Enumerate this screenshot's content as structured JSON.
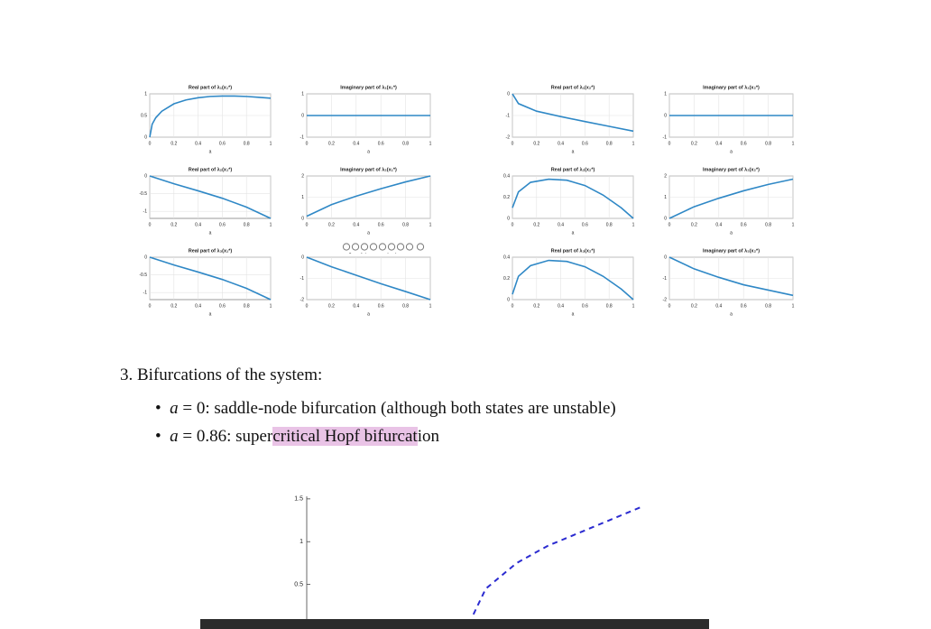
{
  "small_axes": {
    "xlabel": "a",
    "xlim": [
      0,
      1
    ],
    "xticks": [
      0,
      0.2,
      0.4,
      0.6,
      0.8,
      1
    ]
  },
  "plots": [
    {
      "type": "line",
      "title": "Real part of λ₁(x₁*)",
      "ylim": [
        0,
        1
      ],
      "yticks": [
        0,
        0.5,
        1
      ],
      "x": [
        0,
        0.02,
        0.05,
        0.1,
        0.2,
        0.3,
        0.4,
        0.5,
        0.6,
        0.7,
        0.8,
        0.9,
        1
      ],
      "values": [
        0,
        0.3,
        0.45,
        0.6,
        0.77,
        0.86,
        0.91,
        0.94,
        0.95,
        0.95,
        0.94,
        0.92,
        0.9
      ]
    },
    {
      "type": "line",
      "title": "Imaginary part of λ₁(x₁*)",
      "ylim": [
        -1,
        1
      ],
      "yticks": [
        -1,
        0,
        1
      ],
      "x": [
        0,
        1
      ],
      "values": [
        0,
        0
      ]
    },
    {
      "type": "line",
      "title": "Real part of λ₁(x₂*)",
      "ylim": [
        -2,
        0
      ],
      "yticks": [
        -2,
        -1,
        0
      ],
      "x": [
        0,
        0.05,
        0.2,
        0.4,
        0.6,
        0.8,
        1
      ],
      "values": [
        0,
        -0.45,
        -0.8,
        -1.05,
        -1.28,
        -1.5,
        -1.72
      ]
    },
    {
      "type": "line",
      "title": "Imaginary part of λ₁(x₂*)",
      "ylim": [
        -1,
        1
      ],
      "yticks": [
        -1,
        0,
        1
      ],
      "x": [
        0,
        1
      ],
      "values": [
        0,
        0
      ]
    },
    {
      "type": "line",
      "title": "Real part of λ₂(x₁*)",
      "ylim": [
        -1.2,
        0
      ],
      "yticks": [
        -1,
        -0.5,
        0
      ],
      "x": [
        0,
        0.2,
        0.4,
        0.6,
        0.8,
        1
      ],
      "values": [
        0,
        -0.22,
        -0.42,
        -0.63,
        -0.88,
        -1.2
      ]
    },
    {
      "type": "line",
      "title": "Imaginary part of λ₂(x₁*)",
      "ylim": [
        0,
        2
      ],
      "yticks": [
        0,
        1,
        2
      ],
      "x": [
        0,
        0.2,
        0.4,
        0.6,
        0.8,
        1
      ],
      "values": [
        0.1,
        0.65,
        1.05,
        1.4,
        1.72,
        2
      ]
    },
    {
      "type": "line",
      "title": "Real part of λ₂(x₂*)",
      "ylim": [
        0,
        0.4
      ],
      "yticks": [
        0,
        0.2,
        0.4
      ],
      "x": [
        0,
        0.05,
        0.15,
        0.3,
        0.45,
        0.6,
        0.75,
        0.9,
        1
      ],
      "values": [
        0.1,
        0.25,
        0.34,
        0.37,
        0.36,
        0.31,
        0.22,
        0.1,
        0
      ]
    },
    {
      "type": "line",
      "title": "Imaginary part of λ₂(x₂*)",
      "ylim": [
        0,
        2
      ],
      "yticks": [
        0,
        1,
        2
      ],
      "x": [
        0,
        0.2,
        0.4,
        0.6,
        0.8,
        1
      ],
      "values": [
        0,
        0.55,
        0.95,
        1.3,
        1.6,
        1.85
      ]
    },
    {
      "type": "line",
      "title": "Real part of λ₃(x₁*)",
      "ylim": [
        -1.2,
        0
      ],
      "yticks": [
        -1,
        -0.5,
        0
      ],
      "x": [
        0,
        0.2,
        0.4,
        0.6,
        0.8,
        1
      ],
      "values": [
        0,
        -0.22,
        -0.42,
        -0.63,
        -0.88,
        -1.2
      ]
    },
    {
      "type": "line",
      "title": "Imaginary part of λ₃(x₁*)",
      "ylim": [
        -2,
        0
      ],
      "yticks": [
        -2,
        -1,
        0
      ],
      "x": [
        0,
        0.2,
        0.4,
        0.6,
        0.8,
        1
      ],
      "values": [
        0,
        -0.45,
        -0.85,
        -1.25,
        -1.62,
        -2
      ]
    },
    {
      "type": "line",
      "title": "Real part of λ₃(x₂*)",
      "ylim": [
        0,
        0.4
      ],
      "yticks": [
        0,
        0.2,
        0.4
      ],
      "x": [
        0,
        0.05,
        0.15,
        0.3,
        0.45,
        0.6,
        0.75,
        0.9,
        1
      ],
      "values": [
        0.05,
        0.22,
        0.32,
        0.37,
        0.36,
        0.31,
        0.22,
        0.1,
        0
      ]
    },
    {
      "type": "line",
      "title": "Imaginary part of λ₃(x₂*)",
      "ylim": [
        -2,
        0
      ],
      "yticks": [
        -2,
        -1,
        0
      ],
      "x": [
        0,
        0.2,
        0.4,
        0.6,
        0.8,
        1
      ],
      "values": [
        0,
        -0.55,
        -0.95,
        -1.3,
        -1.55,
        -1.8
      ]
    }
  ],
  "section": {
    "heading": "3. Bifurcations of the system:",
    "bullets": [
      {
        "var": "a",
        "rest": " = 0: saddle-node bifurcation (although both states are unstable)"
      },
      {
        "var": "a",
        "rest": " = 0.86: super",
        "highlight": "critical Hopf bifurcat",
        "tail": "ion"
      }
    ]
  },
  "bottom_plot": {
    "type": "line",
    "xlim": [
      0.32,
      1.6
    ],
    "ylim": [
      0,
      1.53
    ],
    "yticks": [
      0.5,
      1,
      1.5
    ],
    "color": "#2b2bd0",
    "x": [
      0.86,
      0.9,
      1,
      1.1,
      1.2,
      1.3,
      1.4
    ],
    "values": [
      0.15,
      0.45,
      0.75,
      0.95,
      1.1,
      1.25,
      1.4
    ]
  }
}
